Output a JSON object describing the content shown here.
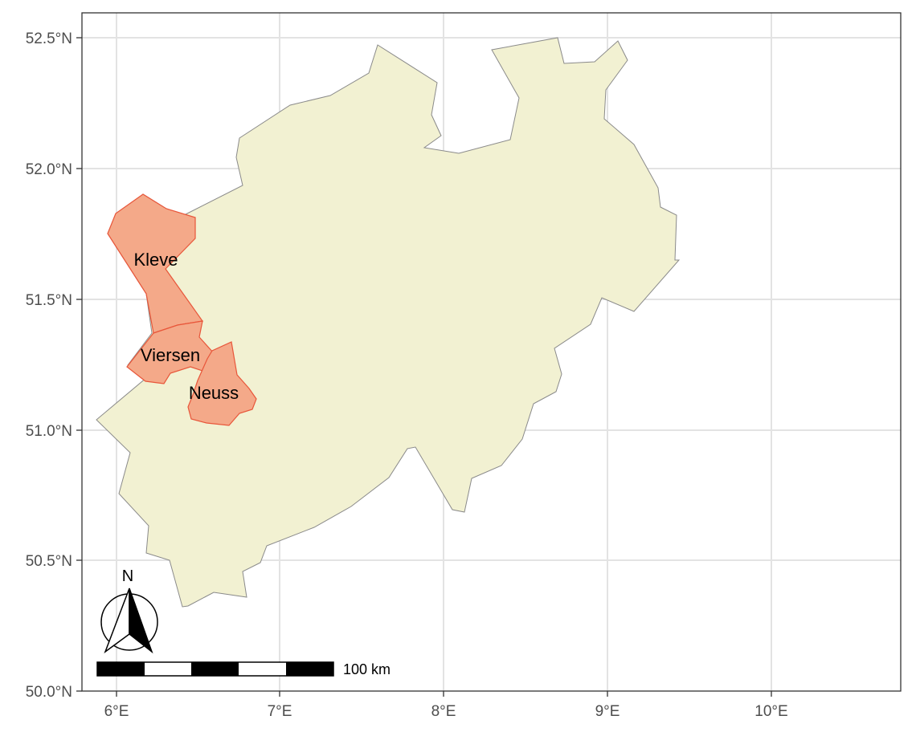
{
  "map": {
    "x_ticks": [
      "6°E",
      "7°E",
      "8°E",
      "9°E",
      "10°E"
    ],
    "y_ticks": [
      "52.5°N",
      "52.0°N",
      "51.5°N",
      "51.0°N",
      "50.5°N",
      "50.0°N"
    ],
    "regions": [
      {
        "label": "Kleve",
        "fill": "#f4a989",
        "stroke": "#e8563a"
      },
      {
        "label": "Viersen",
        "fill": "#f4a989",
        "stroke": "#e8563a"
      },
      {
        "label": "Neuss",
        "fill": "#f4a989",
        "stroke": "#e8563a"
      }
    ],
    "state_fill": "#f2f1d2",
    "state_stroke": "#8a8a8a",
    "gridline_color": "#e3e3e3",
    "scale_bar": {
      "label": "100 km"
    },
    "north_arrow": {
      "label": "N"
    }
  }
}
